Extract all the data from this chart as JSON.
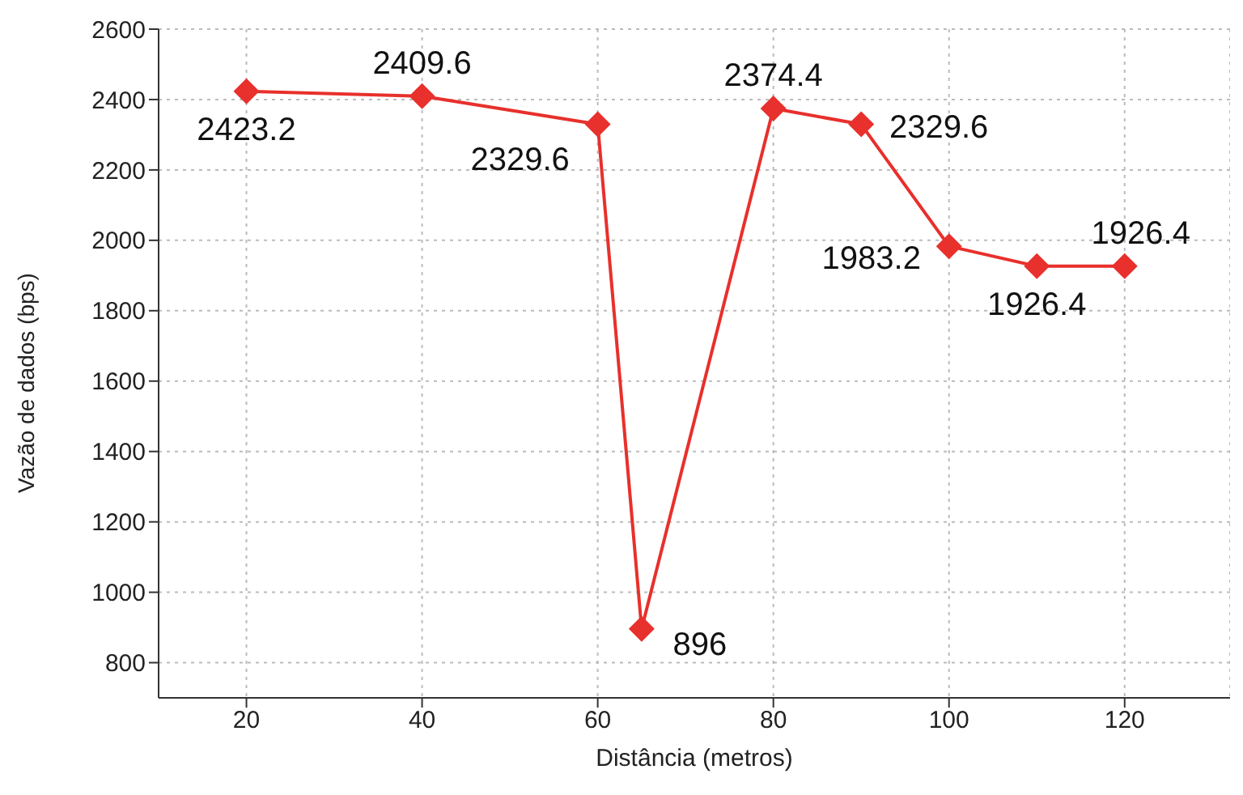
{
  "chart_data": {
    "type": "line",
    "xlabel": "Distância (metros)",
    "ylabel": "Vazão de dados (bps)",
    "x": [
      20,
      40,
      60,
      65,
      80,
      90,
      100,
      110,
      120
    ],
    "series": [
      {
        "color": "#e8302c",
        "values": [
          2423.2,
          2409.6,
          2329.6,
          896,
          2374.4,
          2329.6,
          1983.2,
          1926.4,
          1926.4
        ]
      }
    ],
    "xlim": [
      10,
      132
    ],
    "xticks": [
      20,
      40,
      60,
      80,
      100,
      120
    ],
    "ylim": [
      700,
      2600
    ],
    "yticks": [
      800,
      1000,
      1200,
      1400,
      1600,
      1800,
      2000,
      2200,
      2400,
      2600
    ],
    "grid": true,
    "marker": "diamond",
    "line_style": "solid",
    "data_labels": true
  }
}
